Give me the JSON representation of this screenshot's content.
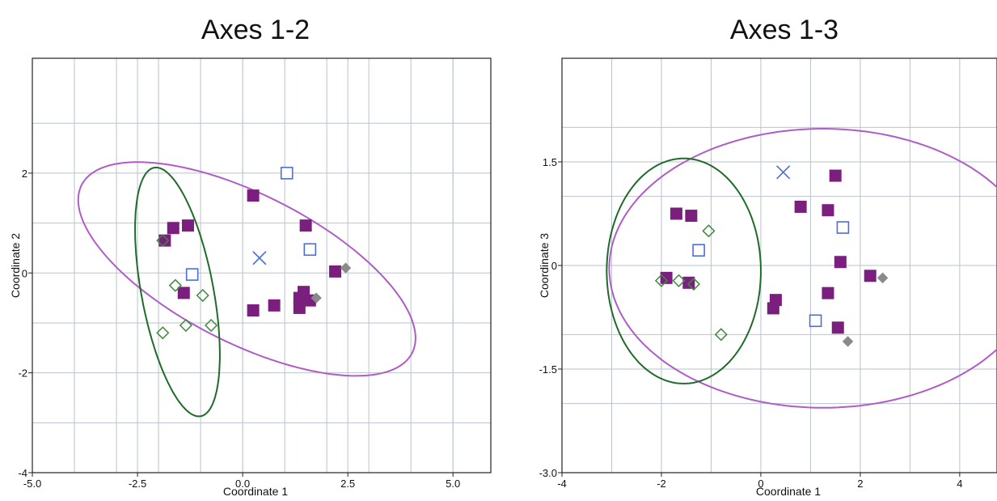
{
  "chart_data": [
    {
      "type": "scatter",
      "title": "Axes 1-2",
      "xlabel": "Coordinate 1",
      "ylabel": "Coordinate 2",
      "xlim": [
        -5,
        5.9
      ],
      "ylim": [
        -4,
        4.3
      ],
      "x_ticks": [
        -5.0,
        -2.5,
        0.0,
        2.5,
        5.0
      ],
      "x_tick_labels": [
        "-5.0",
        "-2.5",
        "0.0",
        "2.5",
        "5.0"
      ],
      "y_ticks": [
        -4,
        -2,
        0,
        2
      ],
      "y_tick_labels": [
        "-4",
        "-2",
        "0",
        "2"
      ],
      "x_grid": [
        -4,
        -3,
        -2,
        -1,
        0,
        1,
        2,
        3,
        4,
        5
      ],
      "y_grid": [
        -3,
        -1,
        1,
        3
      ],
      "grid": true,
      "colors": {
        "purple": "#7b1f7f",
        "green": "#3c8a3c",
        "blue": "#4a6ee0",
        "grey": "#8a8a8a",
        "purple_ellipse": "#b05cc8",
        "green_ellipse": "#1f6b2a"
      },
      "series": [
        {
          "marker": "filled-square",
          "color": "#7b1f7f",
          "points": [
            [
              0.25,
              1.55
            ],
            [
              1.5,
              0.95
            ],
            [
              -1.3,
              0.95
            ],
            [
              -1.65,
              0.9
            ],
            [
              -1.85,
              0.65
            ],
            [
              -1.4,
              -0.4
            ],
            [
              2.2,
              0.03
            ],
            [
              1.45,
              -0.38
            ],
            [
              1.35,
              -0.5
            ],
            [
              1.6,
              -0.55
            ],
            [
              1.35,
              -0.7
            ],
            [
              0.75,
              -0.65
            ],
            [
              0.25,
              -0.75
            ]
          ]
        },
        {
          "marker": "open-diamond",
          "color": "#3c8a3c",
          "points": [
            [
              -1.6,
              -0.25
            ],
            [
              -0.95,
              -0.45
            ],
            [
              -1.35,
              -1.05
            ],
            [
              -0.75,
              -1.05
            ],
            [
              -1.9,
              -1.2
            ],
            [
              -1.9,
              0.65
            ]
          ]
        },
        {
          "marker": "open-square",
          "color": "#4a6ee0",
          "points": [
            [
              1.05,
              2.0
            ],
            [
              1.6,
              0.47
            ],
            [
              -1.2,
              -0.03
            ]
          ]
        },
        {
          "marker": "x",
          "color": "#4a6ee0",
          "points": [
            [
              0.4,
              0.3
            ]
          ]
        },
        {
          "marker": "filled-diamond",
          "color": "#8a8a8a",
          "points": [
            [
              2.45,
              0.1
            ],
            [
              1.75,
              -0.5
            ]
          ]
        }
      ],
      "ellipses": [
        {
          "color": "#b05cc8",
          "cx": 0.1,
          "cy": 0.08,
          "rx": 4.28,
          "ry": 1.53,
          "angle_deg": -22
        },
        {
          "color": "#1f6b2a",
          "cx": -1.55,
          "cy": -0.38,
          "rx": 2.55,
          "ry": 0.85,
          "angle_deg": -77
        }
      ]
    },
    {
      "type": "scatter",
      "title": "Axes 1-3",
      "xlabel": "Coordinate 1",
      "ylabel": "Coordinate 3",
      "xlim": [
        -4,
        4.75
      ],
      "ylim": [
        -3,
        3.0
      ],
      "x_ticks": [
        -4,
        -2,
        0,
        2,
        4
      ],
      "x_tick_labels": [
        "-4",
        "-2",
        "0",
        "2",
        "4"
      ],
      "y_ticks": [
        -3,
        -1.5,
        0,
        1.5
      ],
      "y_tick_labels": [
        "-3.0",
        "-1.5",
        "0",
        "1.5"
      ],
      "x_grid": [
        -3,
        -1,
        1,
        3
      ],
      "y_grid": [
        -2,
        -1,
        1,
        2
      ],
      "grid": true,
      "colors": {
        "purple": "#7b1f7f",
        "green": "#3c8a3c",
        "blue": "#4a6ee0",
        "grey": "#8a8a8a",
        "purple_ellipse": "#b05cc8",
        "green_ellipse": "#1f6b2a"
      },
      "series": [
        {
          "marker": "filled-square",
          "color": "#7b1f7f",
          "points": [
            [
              1.5,
              1.3
            ],
            [
              0.8,
              0.85
            ],
            [
              1.35,
              0.8
            ],
            [
              -1.7,
              0.75
            ],
            [
              -1.4,
              0.72
            ],
            [
              1.6,
              0.05
            ],
            [
              2.2,
              -0.15
            ],
            [
              -1.9,
              -0.18
            ],
            [
              -1.45,
              -0.25
            ],
            [
              1.35,
              -0.4
            ],
            [
              0.3,
              -0.5
            ],
            [
              0.25,
              -0.62
            ],
            [
              1.55,
              -0.9
            ]
          ]
        },
        {
          "marker": "open-diamond",
          "color": "#3c8a3c",
          "points": [
            [
              -1.05,
              0.5
            ],
            [
              -2.0,
              -0.22
            ],
            [
              -1.65,
              -0.22
            ],
            [
              -1.35,
              -0.27
            ],
            [
              -0.8,
              -1.0
            ]
          ]
        },
        {
          "marker": "open-square",
          "color": "#4a6ee0",
          "points": [
            [
              1.65,
              0.55
            ],
            [
              -1.25,
              0.22
            ],
            [
              1.1,
              -0.8
            ]
          ]
        },
        {
          "marker": "x",
          "color": "#4a6ee0",
          "points": [
            [
              0.45,
              1.35
            ]
          ]
        },
        {
          "marker": "filled-diamond",
          "color": "#8a8a8a",
          "points": [
            [
              2.45,
              -0.18
            ],
            [
              1.75,
              -1.1
            ]
          ]
        }
      ],
      "ellipses": [
        {
          "color": "#b05cc8",
          "cx": 1.25,
          "cy": -0.04,
          "rx": 4.3,
          "ry": 2.02,
          "angle_deg": 0
        },
        {
          "color": "#1f6b2a",
          "cx": -1.55,
          "cy": -0.08,
          "rx": 1.55,
          "ry": 1.63,
          "angle_deg": 0
        }
      ]
    }
  ]
}
